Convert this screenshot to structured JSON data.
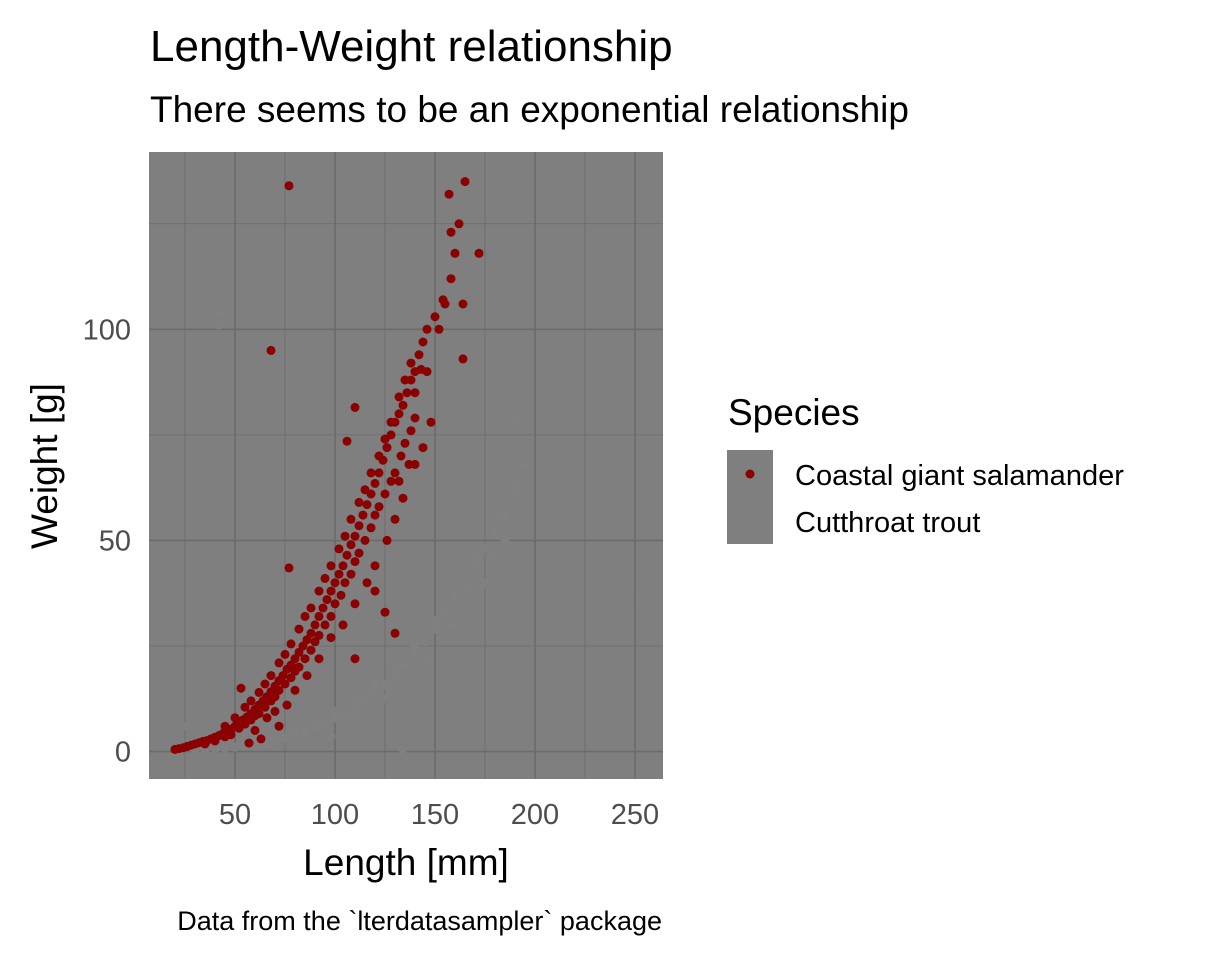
{
  "chart_data": {
    "type": "scatter",
    "title": "Length-Weight relationship",
    "subtitle": "There seems to be an exponential relationship",
    "caption": "Data from the `lterdatasampler` package",
    "xlabel": "Length [mm]",
    "ylabel": "Weight [g]",
    "xlim": [
      7,
      264
    ],
    "ylim": [
      -6.5,
      142
    ],
    "x_ticks": [
      {
        "value": 50,
        "label": "50"
      },
      {
        "value": 100,
        "label": "100"
      },
      {
        "value": 150,
        "label": "150"
      },
      {
        "value": 200,
        "label": "200"
      },
      {
        "value": 250,
        "label": "250"
      }
    ],
    "y_ticks": [
      {
        "value": 0,
        "label": "0"
      },
      {
        "value": 50,
        "label": "50"
      },
      {
        "value": 100,
        "label": "100"
      }
    ],
    "grid": true,
    "panel_color": "#7f7f7f",
    "grid_color": "#6b6b6b",
    "legend": {
      "title": "Species",
      "position": "right",
      "key_color": "#7f7f7f"
    },
    "series": [
      {
        "name": "Coastal giant salamander",
        "color": "#8b0000",
        "points": [
          [
            20,
            0.5
          ],
          [
            22,
            0.7
          ],
          [
            24,
            0.9
          ],
          [
            26,
            1.2
          ],
          [
            28,
            1.5
          ],
          [
            30,
            1.8
          ],
          [
            32,
            2.1
          ],
          [
            34,
            2.4
          ],
          [
            36,
            2.6
          ],
          [
            38,
            3.0
          ],
          [
            40,
            3.4
          ],
          [
            42,
            3.8
          ],
          [
            44,
            4.3
          ],
          [
            46,
            4.8
          ],
          [
            48,
            5.3
          ],
          [
            50,
            6.0
          ],
          [
            52,
            6.8
          ],
          [
            54,
            7.5
          ],
          [
            56,
            8.2
          ],
          [
            58,
            9.0
          ],
          [
            60,
            10.0
          ],
          [
            62,
            11.0
          ],
          [
            64,
            12.0
          ],
          [
            66,
            13.0
          ],
          [
            68,
            14.2
          ],
          [
            70,
            15.5
          ],
          [
            72,
            16.8
          ],
          [
            74,
            18.0
          ],
          [
            76,
            19.5
          ],
          [
            78,
            20.5
          ],
          [
            80,
            22.0
          ],
          [
            82,
            23.5
          ],
          [
            84,
            25.0
          ],
          [
            86,
            26.5
          ],
          [
            88,
            28.0
          ],
          [
            90,
            30.0
          ],
          [
            92,
            32.0
          ],
          [
            94,
            34.0
          ],
          [
            96,
            36.0
          ],
          [
            98,
            38.0
          ],
          [
            100,
            40.0
          ],
          [
            102,
            42.0
          ],
          [
            104,
            44.0
          ],
          [
            106,
            46.5
          ],
          [
            108,
            49.0
          ],
          [
            110,
            51.0
          ],
          [
            112,
            53.5
          ],
          [
            114,
            56.0
          ],
          [
            116,
            58.5
          ],
          [
            118,
            61.0
          ],
          [
            120,
            63.5
          ],
          [
            122,
            66.0
          ],
          [
            124,
            69.0
          ],
          [
            126,
            72.0
          ],
          [
            128,
            75.0
          ],
          [
            130,
            78.0
          ],
          [
            132,
            80.0
          ],
          [
            134,
            82.0
          ],
          [
            136,
            85.0
          ],
          [
            138,
            88.0
          ],
          [
            140,
            90.0
          ],
          [
            142,
            94.0
          ],
          [
            144,
            97.0
          ],
          [
            146,
            100.0
          ],
          [
            150,
            103.0
          ],
          [
            154,
            107.0
          ],
          [
            158,
            112.0
          ],
          [
            160,
            118.0
          ],
          [
            162,
            125.0
          ],
          [
            35,
            1.8
          ],
          [
            40,
            2.5
          ],
          [
            45,
            3.5
          ],
          [
            48,
            4.0
          ],
          [
            52,
            5.5
          ],
          [
            55,
            6.5
          ],
          [
            58,
            7.5
          ],
          [
            60,
            8.5
          ],
          [
            62,
            9.0
          ],
          [
            65,
            10.5
          ],
          [
            68,
            12.0
          ],
          [
            70,
            13.0
          ],
          [
            72,
            14.5
          ],
          [
            75,
            16.0
          ],
          [
            78,
            17.5
          ],
          [
            80,
            19.0
          ],
          [
            82,
            20.0
          ],
          [
            85,
            22.0
          ],
          [
            88,
            24.0
          ],
          [
            90,
            26.0
          ],
          [
            92,
            27.5
          ],
          [
            95,
            30.0
          ],
          [
            98,
            32.0
          ],
          [
            100,
            35.0
          ],
          [
            103,
            37.0
          ],
          [
            105,
            40.0
          ],
          [
            108,
            42.0
          ],
          [
            110,
            45.0
          ],
          [
            112,
            47.0
          ],
          [
            115,
            50.0
          ],
          [
            118,
            53.0
          ],
          [
            120,
            56.0
          ],
          [
            122,
            58.0
          ],
          [
            125,
            61.0
          ],
          [
            128,
            64.0
          ],
          [
            130,
            66.0
          ],
          [
            133,
            70.0
          ],
          [
            135,
            73.0
          ],
          [
            138,
            76.0
          ],
          [
            140,
            79.0
          ],
          [
            45,
            6.0
          ],
          [
            50,
            8.0
          ],
          [
            55,
            10.5
          ],
          [
            58,
            12.0
          ],
          [
            62,
            14.0
          ],
          [
            65,
            16.0
          ],
          [
            68,
            18.0
          ],
          [
            72,
            21.0
          ],
          [
            75,
            23.0
          ],
          [
            78,
            25.5
          ],
          [
            82,
            29.0
          ],
          [
            85,
            32.0
          ],
          [
            88,
            34.0
          ],
          [
            92,
            38.0
          ],
          [
            95,
            41.0
          ],
          [
            98,
            44.0
          ],
          [
            102,
            48.0
          ],
          [
            105,
            51.0
          ],
          [
            108,
            55.0
          ],
          [
            112,
            59.0
          ],
          [
            115,
            62.0
          ],
          [
            118,
            66.0
          ],
          [
            122,
            70.0
          ],
          [
            125,
            74.0
          ],
          [
            128,
            78.0
          ],
          [
            132,
            84.0
          ],
          [
            135,
            88.0
          ],
          [
            138,
            92.0
          ],
          [
            53,
            15.0
          ],
          [
            60,
            5.0
          ],
          [
            66,
            8.0
          ],
          [
            70,
            9.5
          ],
          [
            76,
            11.0
          ],
          [
            80,
            14.5
          ],
          [
            86,
            18.0
          ],
          [
            92,
            22.0
          ],
          [
            98,
            27.0
          ],
          [
            104,
            30.0
          ],
          [
            110,
            35.0
          ],
          [
            116,
            40.0
          ],
          [
            120,
            44.0
          ],
          [
            126,
            50.0
          ],
          [
            130,
            55.0
          ],
          [
            134,
            60.0
          ],
          [
            140,
            68.0
          ],
          [
            144,
            72.0
          ],
          [
            148,
            78.0
          ],
          [
            57,
            2.0
          ],
          [
            63,
            3.0
          ],
          [
            72,
            6.0
          ],
          [
            120,
            38.0
          ],
          [
            125,
            33.0
          ],
          [
            130,
            28.0
          ],
          [
            110,
            22.0
          ],
          [
            77,
            134.0
          ],
          [
            68,
            95.0
          ],
          [
            165,
            135.0
          ],
          [
            157,
            132.0
          ],
          [
            172,
            118.0
          ],
          [
            164,
            106.0
          ],
          [
            155,
            106.0
          ],
          [
            158,
            123.0
          ],
          [
            77,
            43.5
          ],
          [
            106,
            73.5
          ],
          [
            110,
            81.5
          ],
          [
            143,
            90.5
          ],
          [
            146,
            90.0
          ],
          [
            140,
            85.0
          ],
          [
            152,
            100.0
          ],
          [
            164,
            93.0
          ],
          [
            137,
            68.0
          ],
          [
            132,
            64.0
          ]
        ]
      },
      {
        "name": "Cutthroat trout",
        "color": "#808080",
        "points": [
          [
            30,
            0.3
          ],
          [
            35,
            0.4
          ],
          [
            40,
            0.6
          ],
          [
            45,
            0.8
          ],
          [
            50,
            1.0
          ],
          [
            55,
            1.3
          ],
          [
            60,
            1.7
          ],
          [
            65,
            2.1
          ],
          [
            70,
            2.6
          ],
          [
            75,
            3.2
          ],
          [
            80,
            3.9
          ],
          [
            85,
            4.7
          ],
          [
            90,
            5.6
          ],
          [
            95,
            6.6
          ],
          [
            100,
            7.8
          ],
          [
            105,
            9.0
          ],
          [
            110,
            10.5
          ],
          [
            115,
            12.0
          ],
          [
            120,
            13.8
          ],
          [
            125,
            15.8
          ],
          [
            130,
            18.0
          ],
          [
            135,
            20.5
          ],
          [
            140,
            23.0
          ],
          [
            145,
            26.0
          ],
          [
            150,
            29.0
          ],
          [
            155,
            32.5
          ],
          [
            160,
            36.0
          ],
          [
            165,
            40.0
          ],
          [
            170,
            44.0
          ],
          [
            175,
            48.0
          ],
          [
            180,
            52.0
          ],
          [
            185,
            56.0
          ],
          [
            190,
            62.0
          ],
          [
            195,
            68.0
          ],
          [
            60,
            2.5
          ],
          [
            70,
            3.5
          ],
          [
            80,
            5.0
          ],
          [
            90,
            7.0
          ],
          [
            100,
            9.5
          ],
          [
            110,
            12.5
          ],
          [
            120,
            16.0
          ],
          [
            130,
            20.0
          ],
          [
            140,
            25.0
          ],
          [
            150,
            31.0
          ],
          [
            160,
            38.0
          ],
          [
            170,
            46.0
          ],
          [
            180,
            55.0
          ],
          [
            188,
            64.0
          ],
          [
            192,
            72.0
          ],
          [
            191,
            78.0
          ],
          [
            43,
            104.0
          ],
          [
            42,
            101.0
          ],
          [
            41,
            83.0
          ],
          [
            36,
            38.0
          ],
          [
            253,
            36.0
          ],
          [
            134,
            0.5
          ],
          [
            127,
            15.0
          ],
          [
            140,
            15.0
          ],
          [
            117,
            7.0
          ],
          [
            98,
            3.5
          ],
          [
            26,
            6.0
          ],
          [
            32,
            2.0
          ],
          [
            110,
            8.0
          ],
          [
            125,
            12.5
          ],
          [
            145,
            22.0
          ],
          [
            158,
            30.0
          ],
          [
            168,
            38.0
          ],
          [
            178,
            46.0
          ],
          [
            185,
            50.0
          ],
          [
            175,
            40.0
          ]
        ]
      }
    ]
  }
}
